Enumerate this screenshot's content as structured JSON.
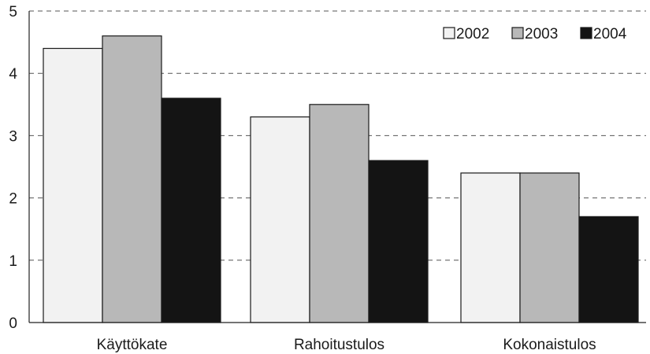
{
  "chart_data": {
    "type": "bar",
    "title": "",
    "xlabel": "",
    "ylabel": "",
    "ylim": [
      0,
      5
    ],
    "yticks": [
      "0",
      "1",
      "2",
      "3",
      "4",
      "5"
    ],
    "grid": true,
    "legend_position": "top-right",
    "categories": [
      "Käyttökate",
      "Rahoitustulos",
      "Kokonaistulos"
    ],
    "series": [
      {
        "name": "2002",
        "color": "#f2f2f2",
        "values": [
          4.4,
          3.3,
          2.4
        ]
      },
      {
        "name": "2003",
        "color": "#b8b8b8",
        "values": [
          4.6,
          3.5,
          2.4
        ]
      },
      {
        "name": "2004",
        "color": "#141414",
        "values": [
          3.6,
          2.6,
          1.7
        ]
      }
    ]
  }
}
